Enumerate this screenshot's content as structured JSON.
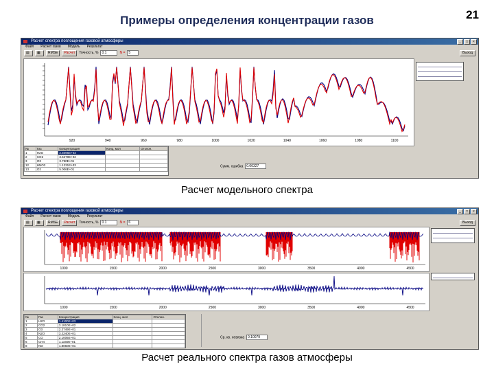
{
  "slide": {
    "title": "Примеры определения концентрации газов",
    "number": "21",
    "caption1": "Расчет модельного спектра",
    "caption2": "Расчет реального спектра газов атмосферы"
  },
  "window1": {
    "title": "Расчет спектра поглощения газовой атмосферы",
    "menu": [
      "Файл",
      "Расчет газов",
      "Модель",
      "Результат"
    ],
    "toolbar": {
      "rmse_label": "RMSE",
      "calc_label": "Расчет",
      "tolerance_label": "Точность, %",
      "tolerance_value": "0.1",
      "n_label": "N =",
      "n_value": "5"
    },
    "exit_label": "Выход",
    "x_ticks": [
      "920",
      "940",
      "960",
      "980",
      "1000",
      "1020",
      "1040",
      "1060",
      "1080",
      "1100"
    ],
    "table": {
      "headers": [
        "№",
        "Газ",
        "Концентрация",
        "Конц. мол",
        "Отклон."
      ],
      "rows": [
        [
          "1",
          "H2O",
          "2.5096E+03"
        ],
        [
          "2",
          "CO2",
          "3.5270E+02"
        ],
        [
          "3",
          "O3",
          "3.780E+01"
        ],
        [
          "12",
          "HNO3",
          "1.1231E+03"
        ],
        [
          "13",
          "O2",
          "5.006E+01"
        ]
      ]
    },
    "residual_label": "Сумм. ошибка",
    "residual_value": "0.00327"
  },
  "window2": {
    "title": "Расчет спектра поглощения газовой атмосферы",
    "menu": [
      "Файл",
      "Расчет газов",
      "Модель",
      "Результат"
    ],
    "toolbar": {
      "rmse_label": "RMSE",
      "calc_label": "Расчет",
      "tolerance_label": "Точность, %",
      "tolerance_value": "0.1",
      "n_label": "N =",
      "n_value": "6"
    },
    "exit_label": "Выход",
    "x_ticks_top": [
      "1000",
      "1500",
      "2000",
      "2500",
      "3000",
      "3500",
      "4000",
      "4500"
    ],
    "x_ticks_bottom": [
      "1000",
      "1500",
      "2000",
      "2500",
      "3000",
      "3500",
      "4000",
      "4500"
    ],
    "table": {
      "headers": [
        "№",
        "Газ",
        "Концентрация",
        "Конц. мол",
        "Отклон."
      ],
      "rows": [
        [
          "1",
          "H2O",
          "1.4100E+03"
        ],
        [
          "2",
          "CO2",
          "3.1810E+02"
        ],
        [
          "3",
          "O3",
          "2.2749E+01"
        ],
        [
          "4",
          "N2O",
          "3.2240E+01"
        ],
        [
          "5",
          "CO",
          "2.1005E+01"
        ],
        [
          "6",
          "CH4",
          "1.1160E+01"
        ],
        [
          "8",
          "NO",
          "1.8060E+01"
        ]
      ]
    },
    "residual_label": "Ср. кв. невязка",
    "residual_value": "0.10079"
  },
  "colors": {
    "measured": "#000080",
    "model": "#e00000",
    "title": "#1f2d5a",
    "window_bg": "#d4d0c8"
  }
}
